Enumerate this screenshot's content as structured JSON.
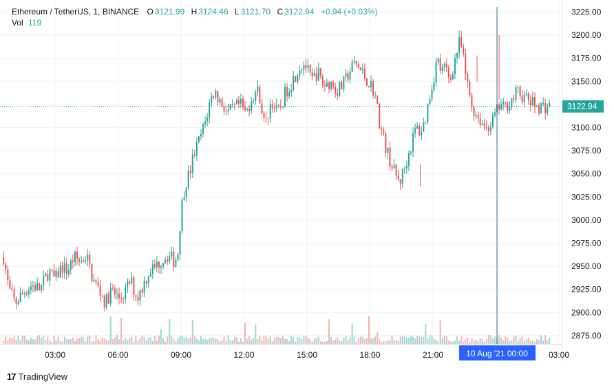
{
  "header": {
    "symbol": "Ethereum / TetherUS, 1, BINANCE",
    "o_label": "O",
    "o_value": "3121.99",
    "h_label": "H",
    "h_value": "3124.46",
    "l_label": "L",
    "l_value": "3121.70",
    "c_label": "C",
    "c_value": "3122.94",
    "change": "+0.94 (+0.03%)",
    "vol_label": "Vol",
    "vol_value": "119"
  },
  "branding": {
    "name": "TradingView",
    "logo": "17"
  },
  "colors": {
    "up": "#26a69a",
    "down": "#ef5350",
    "accent": "#2962ff",
    "line": "#1e6f8f"
  },
  "chart_data": {
    "type": "candlestick",
    "title": "Ethereum / TetherUS, 1, BINANCE",
    "y_ticks": [
      2875,
      2900,
      2925,
      2950,
      2975,
      3000,
      3025,
      3050,
      3075,
      3100,
      3125,
      3150,
      3175,
      3200,
      3225
    ],
    "ylim": [
      2866,
      3238
    ],
    "x_ticks": [
      "03:00",
      "06:00",
      "09:00",
      "12:00",
      "15:00",
      "18:00",
      "21:00",
      "03:00"
    ],
    "crosshair_label": "10 Aug '21   00:00",
    "last_price": "3122.94",
    "last_price_value": 3122.94,
    "grid": true,
    "price_path_hours": [
      0.55,
      0.8,
      1.1,
      1.5,
      1.9,
      2.3,
      2.7,
      3.0,
      3.3,
      3.6,
      3.9,
      4.2,
      4.5,
      4.8,
      5.1,
      5.4,
      5.7,
      6.0,
      6.3,
      6.6,
      6.9,
      7.2,
      7.5,
      7.8,
      8.1,
      8.4,
      8.7,
      8.85,
      9.0,
      9.2,
      9.4,
      9.6,
      9.8,
      10.0,
      10.2,
      10.4,
      10.6,
      10.8,
      11.0,
      11.2,
      11.5,
      11.8,
      12.1,
      12.4,
      12.7,
      13.0,
      13.3,
      13.6,
      13.8,
      14.0,
      14.3,
      14.6,
      14.9,
      15.2,
      15.5,
      15.8,
      16.1,
      16.4,
      16.7,
      17.0,
      17.3,
      17.6,
      17.9,
      18.2,
      18.5,
      18.8,
      19.1,
      19.4,
      19.7,
      20.0,
      20.2,
      20.4,
      20.6,
      20.8,
      21.0,
      21.2,
      21.4,
      21.6,
      21.8,
      22.0,
      22.3,
      22.6,
      22.9,
      23.2,
      23.5,
      23.8,
      24.0,
      24.2,
      24.4,
      24.6,
      24.8,
      25.0,
      25.2,
      25.5,
      25.8,
      26.1,
      26.4,
      26.6
    ],
    "price_path_values": [
      2960,
      2925,
      2910,
      2922,
      2930,
      2925,
      2945,
      2935,
      2950,
      2945,
      2960,
      2955,
      2962,
      2935,
      2925,
      2910,
      2925,
      2915,
      2920,
      2935,
      2915,
      2930,
      2945,
      2950,
      2958,
      2962,
      2955,
      2965,
      3010,
      3040,
      3050,
      3070,
      3082,
      3095,
      3110,
      3130,
      3140,
      3130,
      3125,
      3115,
      3120,
      3125,
      3115,
      3135,
      3140,
      3100,
      3130,
      3115,
      3125,
      3140,
      3150,
      3165,
      3170,
      3150,
      3160,
      3145,
      3150,
      3140,
      3145,
      3160,
      3170,
      3160,
      3150,
      3140,
      3100,
      3075,
      3055,
      3040,
      3060,
      3085,
      3100,
      3095,
      3105,
      3130,
      3150,
      3175,
      3160,
      3165,
      3150,
      3170,
      3195,
      3150,
      3120,
      3110,
      3100,
      3105,
      3115,
      3125,
      3120,
      3128,
      3130,
      3140,
      3135,
      3130,
      3125,
      3122.94,
      3122.94,
      3122.94
    ]
  }
}
